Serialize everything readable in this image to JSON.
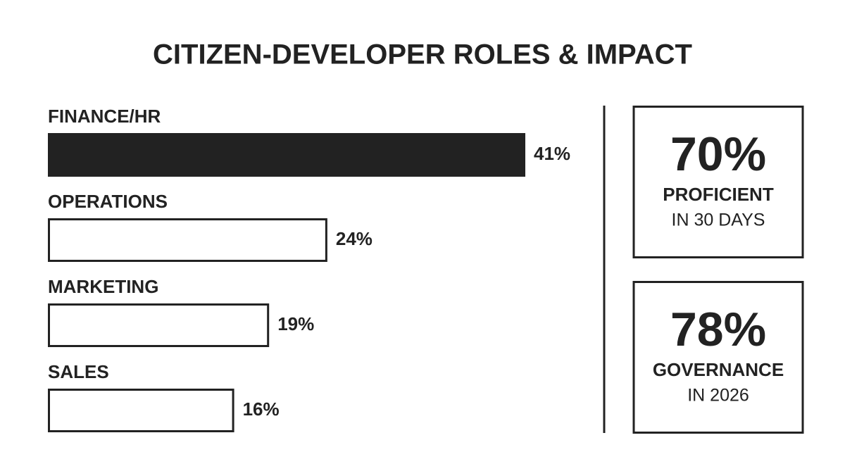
{
  "chart_data": {
    "type": "bar",
    "orientation": "horizontal",
    "title": "CITIZEN-DEVELOPER ROLES & IMPACT",
    "categories": [
      "FINANCE/HR",
      "OPERATIONS",
      "MARKETING",
      "SALES"
    ],
    "values": [
      41,
      24,
      19,
      16
    ],
    "value_labels": [
      "41%",
      "24%",
      "19%",
      "16%"
    ],
    "colors": [
      "#222222",
      "#ffffff",
      "#ffffff",
      "#ffffff"
    ]
  },
  "stats": [
    {
      "value": "70%",
      "label": "PROFICIENT",
      "sublabel": "IN 30 DAYS"
    },
    {
      "value": "78%",
      "label": "GOVERNANCE",
      "sublabel": "IN 2026"
    }
  ]
}
